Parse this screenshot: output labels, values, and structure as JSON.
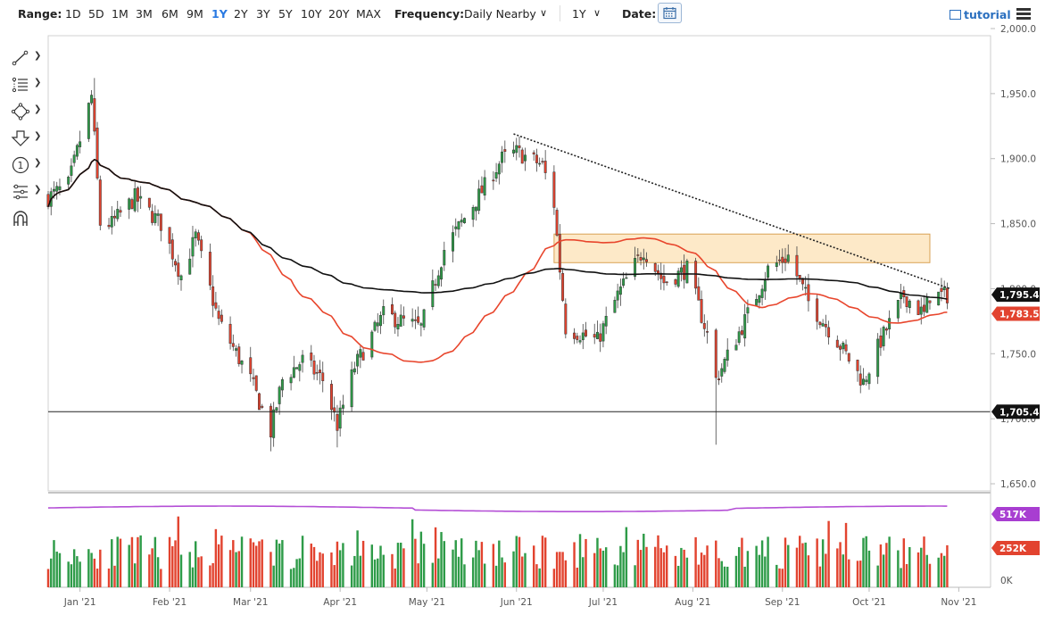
{
  "toolbar": {
    "range_label": "Range:",
    "ranges": [
      "1D",
      "5D",
      "1M",
      "3M",
      "6M",
      "9M",
      "1Y",
      "2Y",
      "3Y",
      "5Y",
      "10Y",
      "20Y",
      "MAX"
    ],
    "active_range": "1Y",
    "frequency_label": "Frequency:",
    "frequency_value": "Daily Nearby",
    "period_value": "1Y",
    "date_label": "Date:",
    "tutorial_label": "tutorial"
  },
  "tools": [
    "line-tool-icon",
    "fib-tool-icon",
    "shape-tool-icon",
    "arrow-tool-icon",
    "counter-tool-icon",
    "measure-tool-icon",
    "magnet-icon"
  ],
  "colors": {
    "up": "#2e9b48",
    "down": "#e2432f",
    "ma_short": "#e8452c",
    "ma_long": "#111111",
    "volume_ma": "#b44fd6",
    "zone_fill": "#fde9c8",
    "zone_stroke": "#d9a255",
    "badge_dark": "#111111",
    "badge_red": "#e2432f",
    "badge_purple": "#a83ed1"
  },
  "chart_data": {
    "type": "candlestick",
    "y_ticks": [
      "2,000.0",
      "1,950.0",
      "1,900.0",
      "1,850.0",
      "1,800.0",
      "1,750.0",
      "1,700.0",
      "1,650.0"
    ],
    "ylim": [
      1650,
      2000
    ],
    "x_ticks": [
      "Jan '21",
      "Feb '21",
      "Mar '21",
      "Apr '21",
      "May '21",
      "Jun '21",
      "Jul '21",
      "Aug '21",
      "Sep '21",
      "Oct '21",
      "Nov '21"
    ],
    "badges": [
      {
        "label": "1,795.4",
        "value": 1795.4,
        "color": "badge_dark"
      },
      {
        "label": "1,783.5",
        "value": 1783.5,
        "color": "badge_red"
      },
      {
        "label": "1,705.4",
        "value": 1705.4,
        "color": "badge_dark"
      }
    ],
    "horizontal_line": 1705.4,
    "trendline": [
      {
        "date": "2021-05-31",
        "price": 1919
      },
      {
        "date": "2021-10-29",
        "price": 1800
      }
    ],
    "zone": {
      "from": "2021-06-14",
      "to": "2021-10-22",
      "low": 1820,
      "high": 1842
    },
    "volume_ticks": [
      "517K",
      "252K",
      "0K"
    ],
    "volume_ma_value": "517K",
    "last_volume_value": "252K",
    "volume_max": 620000
  }
}
